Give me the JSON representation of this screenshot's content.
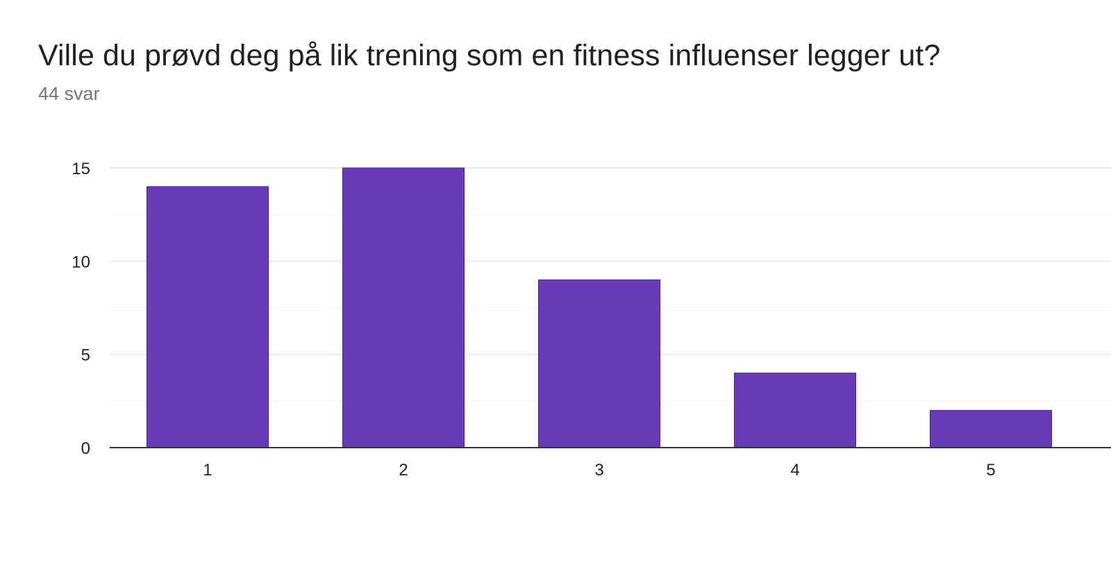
{
  "header": {
    "title": "Ville du prøvd deg på lik trening som en fitness influenser legger ut?",
    "response_count": "44 svar"
  },
  "colors": {
    "bar": "#673ab7",
    "bar_stroke": "#4a1f9a",
    "major_grid": "#ebebeb",
    "minor_grid": "#f5f5f5",
    "baseline": "#333333"
  },
  "chart_data": {
    "type": "bar",
    "title": "Ville du prøvd deg på lik trening som en fitness influenser legger ut?",
    "subtitle": "44 svar",
    "categories": [
      "1",
      "2",
      "3",
      "4",
      "5"
    ],
    "values": [
      14,
      15,
      9,
      4,
      2
    ],
    "xlabel": "",
    "ylabel": "",
    "ylim": [
      0,
      15
    ],
    "yticks": [
      0,
      5,
      10,
      15
    ],
    "grid": true,
    "legend": "none"
  }
}
